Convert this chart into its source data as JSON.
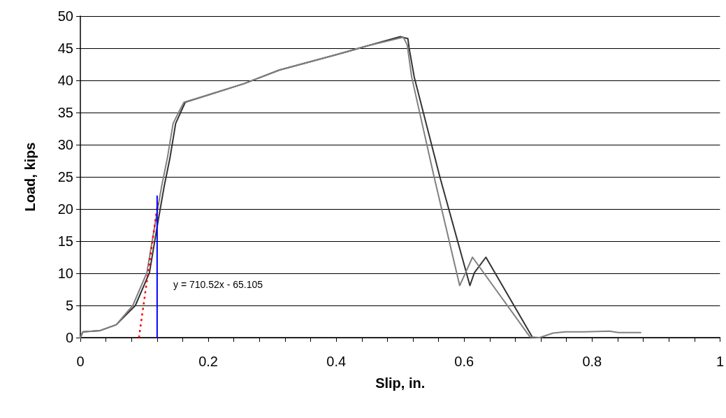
{
  "chart_data": {
    "type": "line",
    "xlabel": "Slip, in.",
    "ylabel": "Load, kips",
    "xlim": [
      0,
      1
    ],
    "ylim": [
      0,
      50
    ],
    "xticks": [
      0,
      {
        "value": 0.04,
        "label": null
      },
      {
        "value": 0.08,
        "label": null
      },
      {
        "value": 0.12,
        "label": null
      },
      {
        "value": 0.16,
        "label": null
      },
      {
        "value": 0.2,
        "label": "0.2"
      },
      {
        "value": 0.24,
        "label": null
      },
      {
        "value": 0.28,
        "label": null
      },
      {
        "value": 0.32,
        "label": null
      },
      {
        "value": 0.36,
        "label": null
      },
      {
        "value": 0.4,
        "label": "0.4"
      },
      {
        "value": 0.44,
        "label": null
      },
      {
        "value": 0.48,
        "label": null
      },
      {
        "value": 0.52,
        "label": null
      },
      {
        "value": 0.56,
        "label": null
      },
      {
        "value": 0.6,
        "label": "0.6"
      },
      {
        "value": 0.64,
        "label": null
      },
      {
        "value": 0.68,
        "label": null
      },
      {
        "value": 0.72,
        "label": null
      },
      {
        "value": 0.76,
        "label": null
      },
      {
        "value": 0.8,
        "label": "0.8"
      },
      {
        "value": 0.84,
        "label": null
      },
      {
        "value": 0.88,
        "label": null
      },
      {
        "value": 0.92,
        "label": null
      },
      {
        "value": 0.96,
        "label": null
      },
      1
    ],
    "yticks": [
      0,
      5,
      10,
      15,
      20,
      25,
      30,
      35,
      40,
      45,
      50
    ],
    "grid": "y",
    "marker": "none",
    "line_style": "solid",
    "series": [
      {
        "color": "#333333",
        "x": [
          0,
          0.004,
          0.031,
          0.056,
          0.086,
          0.108,
          0.122,
          0.131,
          0.14,
          0.149,
          0.158,
          0.164,
          0.202,
          0.256,
          0.311,
          0.4,
          0.45,
          0.5,
          0.512,
          0.514,
          0.522,
          0.562,
          0.609,
          0.616,
          0.634,
          0.707
        ],
        "values": [
          0,
          0.9,
          1.1,
          2.0,
          5.0,
          10.1,
          18.4,
          23.5,
          27.9,
          33.3,
          35.3,
          36.6,
          37.8,
          39.5,
          41.6,
          44.0,
          45.4,
          46.8,
          46.5,
          45.0,
          40.5,
          25.0,
          8.1,
          10.1,
          12.5,
          0
        ]
      },
      {
        "color": "#808080",
        "x": [
          0,
          0.004,
          0.031,
          0.056,
          0.082,
          0.104,
          0.118,
          0.127,
          0.136,
          0.145,
          0.155,
          0.162,
          0.202,
          0.256,
          0.311,
          0.4,
          0.45,
          0.505,
          0.511,
          0.518,
          0.553,
          0.593,
          0.6,
          0.613,
          0.703,
          0.718,
          0.739,
          0.758,
          0.787,
          0.827,
          0.841,
          0.876
        ],
        "values": [
          0,
          0.9,
          1.1,
          2.0,
          5.0,
          10.1,
          18.4,
          23.5,
          27.9,
          33.3,
          35.3,
          36.6,
          37.8,
          39.5,
          41.6,
          44.0,
          45.4,
          46.7,
          45.5,
          40.5,
          25.0,
          8.1,
          9.6,
          12.5,
          0.1,
          0,
          0.7,
          0.9,
          0.9,
          1.0,
          0.8,
          0.8
        ]
      },
      {
        "type": "line",
        "color": "#ff0000",
        "line_style": "dotted",
        "x": [
          0.0916,
          0.1212
        ],
        "values": [
          0,
          21
        ]
      },
      {
        "type": "line",
        "color": "#0000ff",
        "x": [
          0.12,
          0.12
        ],
        "values": [
          0,
          22
        ]
      }
    ],
    "annotations": [
      "y = 710.52x - 65.105"
    ]
  }
}
